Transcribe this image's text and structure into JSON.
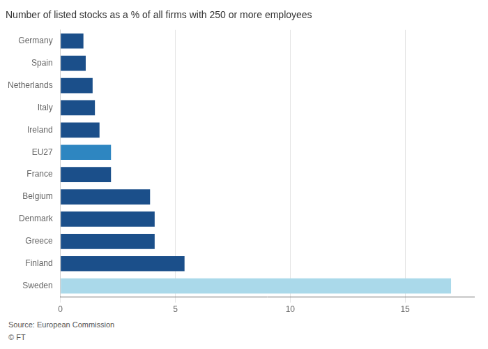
{
  "chart_data": {
    "type": "bar",
    "orientation": "horizontal",
    "title": "Number of listed stocks as a % of all firms with 250 or more employees",
    "categories": [
      "Germany",
      "Spain",
      "Netherlands",
      "Italy",
      "Ireland",
      "EU27",
      "France",
      "Belgium",
      "Denmark",
      "Greece",
      "Finland",
      "Sweden"
    ],
    "values": [
      1.0,
      1.1,
      1.4,
      1.5,
      1.7,
      2.2,
      2.2,
      3.9,
      4.1,
      4.1,
      5.4,
      17.0
    ],
    "colors": [
      "#1b4f8a",
      "#1b4f8a",
      "#1b4f8a",
      "#1b4f8a",
      "#1b4f8a",
      "#2e86c1",
      "#1b4f8a",
      "#1b4f8a",
      "#1b4f8a",
      "#1b4f8a",
      "#1b4f8a",
      "#aad9ea"
    ],
    "xlim": [
      0,
      18
    ],
    "xticks": [
      0,
      5,
      10,
      15
    ],
    "grid": true,
    "annotations": [
      "Source: European Commission",
      "© FT"
    ]
  }
}
